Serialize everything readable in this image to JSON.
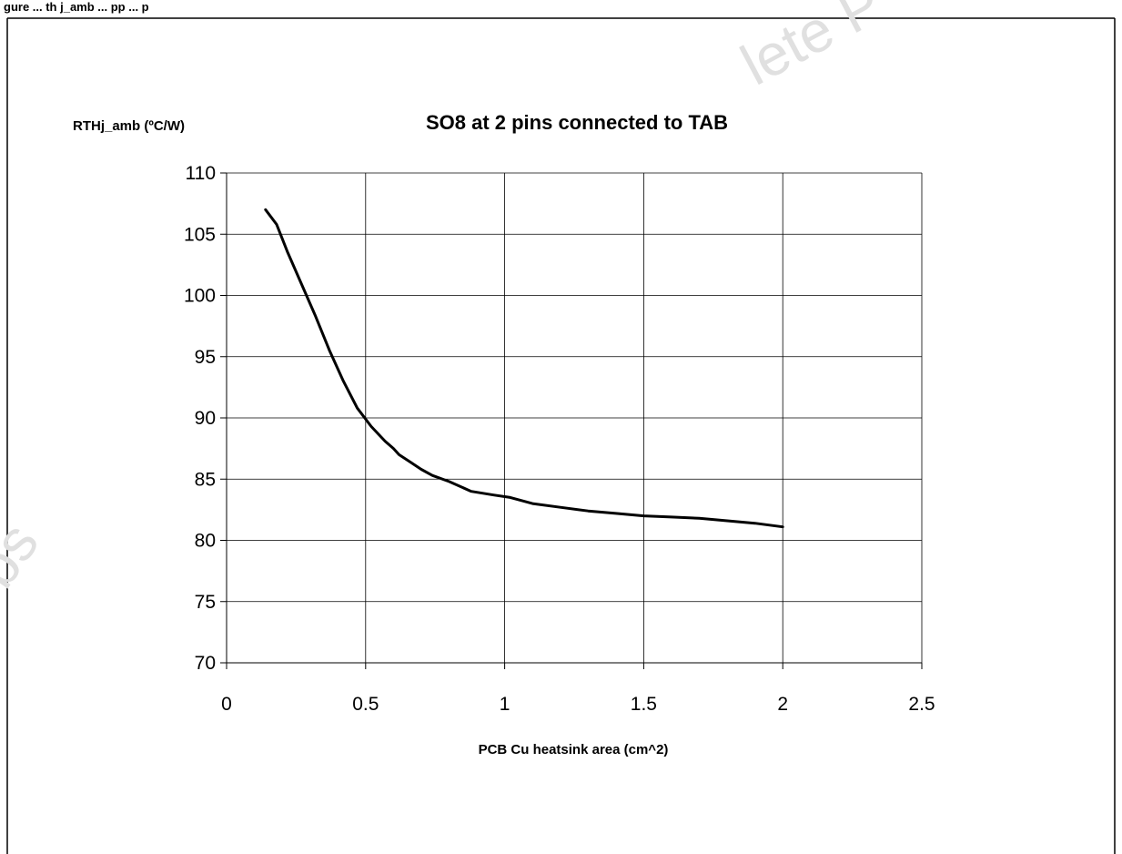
{
  "figure": {
    "caption": "gure ... th j_amb ... pp ... p",
    "watermark_top": "lete P",
    "watermark_left": "bs"
  },
  "chart_data": {
    "type": "line",
    "title": "SO8 at 2 pins connected to TAB",
    "xlabel": "PCB Cu heatsink area (cm^2)",
    "ylabel": "RTHj_amb (ºC/W)",
    "xlim": [
      0,
      2.5
    ],
    "ylim": [
      70,
      110
    ],
    "x_ticks": [
      "0",
      "0.5",
      "1",
      "1.5",
      "2",
      "2.5"
    ],
    "y_ticks": [
      "70",
      "75",
      "80",
      "85",
      "90",
      "95",
      "100",
      "105",
      "110"
    ],
    "grid": true,
    "legend": "none",
    "series": [
      {
        "x": [
          0.14,
          0.18,
          0.22,
          0.27,
          0.32,
          0.37,
          0.42,
          0.47,
          0.52,
          0.57,
          0.6,
          0.62,
          0.66,
          0.7,
          0.74,
          0.8,
          0.88,
          0.96,
          1.02,
          1.1,
          1.2,
          1.3,
          1.4,
          1.5,
          1.6,
          1.7,
          1.8,
          1.9,
          2.0
        ],
        "values": [
          107,
          105.8,
          103.5,
          100.9,
          98.3,
          95.5,
          93.0,
          90.8,
          89.3,
          88.1,
          87.5,
          87.0,
          86.4,
          85.8,
          85.3,
          84.8,
          84.0,
          83.7,
          83.5,
          83.0,
          82.7,
          82.4,
          82.2,
          82.0,
          81.9,
          81.8,
          81.6,
          81.4,
          81.1
        ]
      }
    ],
    "color": "#000000"
  }
}
